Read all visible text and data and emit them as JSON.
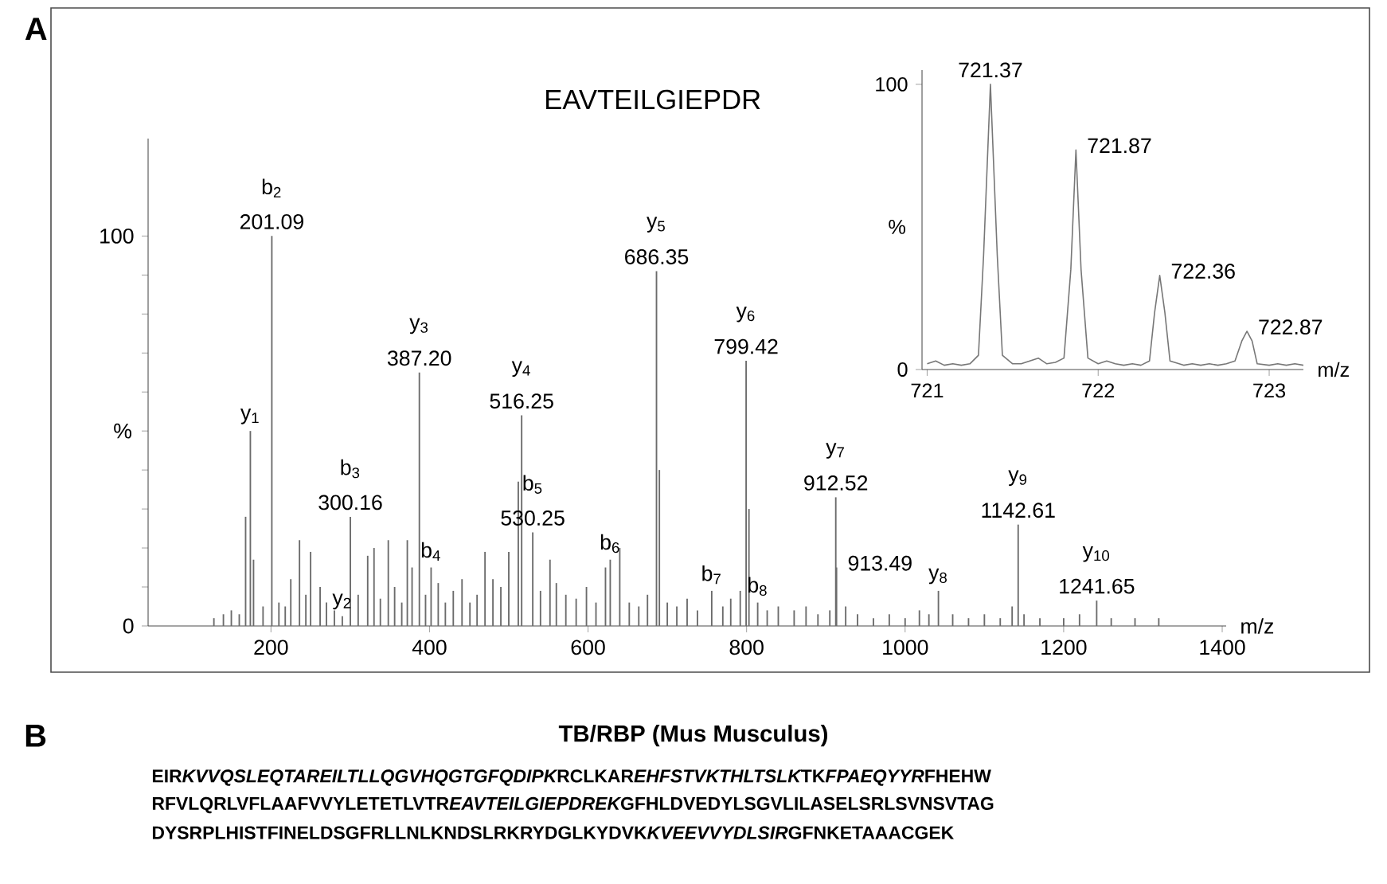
{
  "chart_data": [
    {
      "type": "bar",
      "xlabel": "m/z",
      "ylabel": "%",
      "color": "#6b6b6b",
      "x": [
        128,
        140,
        150,
        160,
        168,
        174,
        178,
        190,
        201.09,
        210,
        218,
        225,
        236,
        244,
        250,
        262,
        270,
        280,
        290,
        300.16,
        310,
        322,
        330,
        338,
        348,
        356,
        365,
        372,
        378,
        387.2,
        395,
        402,
        411,
        420,
        430,
        441,
        451,
        460,
        470,
        480,
        490,
        500,
        512,
        516.25,
        530.25,
        540,
        552,
        560,
        572,
        585,
        598,
        610,
        622,
        628,
        640,
        652,
        664,
        675,
        686.35,
        690,
        700,
        712,
        725,
        738,
        756,
        770,
        780,
        792,
        799.42,
        803,
        814,
        826,
        840,
        860,
        875,
        890,
        905,
        912.52,
        913.49,
        925,
        940,
        960,
        980,
        1000,
        1018,
        1030,
        1042,
        1060,
        1080,
        1100,
        1120,
        1135,
        1142.61,
        1150,
        1170,
        1200,
        1220,
        1241.65,
        1260,
        1290,
        1320
      ],
      "values": [
        2,
        3,
        4,
        3,
        28,
        50,
        17,
        5,
        100,
        6,
        5,
        12,
        22,
        8,
        19,
        10,
        6,
        4,
        2.5,
        28,
        8,
        18,
        20,
        7,
        22,
        10,
        6,
        22,
        15,
        65,
        8,
        15,
        11,
        6,
        9,
        12,
        6,
        8,
        19,
        12,
        10,
        19,
        37,
        54,
        24,
        9,
        17,
        11,
        8,
        7,
        10,
        6,
        15,
        17,
        20,
        6,
        5,
        8,
        91,
        40,
        6,
        5,
        7,
        4,
        9,
        5,
        7,
        9,
        68,
        30,
        6,
        4,
        5,
        4,
        5,
        3,
        4,
        33,
        15,
        5,
        3,
        2,
        3,
        2,
        4,
        3,
        9,
        3,
        2,
        3,
        2,
        5,
        26,
        3,
        2,
        2,
        3,
        6.5,
        2,
        2,
        2
      ],
      "xlim": [
        45,
        1405
      ],
      "ylim": [
        0,
        125
      ],
      "xticks": [
        200,
        400,
        600,
        800,
        1000,
        1200,
        1400
      ],
      "yticks": [
        0,
        {
          "value": 10,
          "label": null
        },
        {
          "value": 20,
          "label": null
        },
        {
          "value": 30,
          "label": null
        },
        {
          "value": 40,
          "label": null
        },
        {
          "value": 50,
          "label": null
        },
        {
          "value": 60,
          "label": null
        },
        {
          "value": 70,
          "label": null
        },
        {
          "value": 80,
          "label": null
        },
        {
          "value": 90,
          "label": null
        },
        100
      ],
      "annotations": [
        "A",
        "EAVTEILGIEPDR",
        {
          "text": "y$_{1}$",
          "x": 174,
          "y": 50
        },
        {
          "text": "b$_{2}$",
          "x": 201.09,
          "y": 100
        },
        {
          "text": "201.09",
          "x": 201.09,
          "y": 100
        },
        {
          "text": "y$_{2}$",
          "x": 290,
          "y": 2.5
        },
        {
          "text": "b$_{3}$",
          "x": 300.16,
          "y": 28
        },
        {
          "text": "300.16",
          "x": 300.16,
          "y": 28
        },
        {
          "text": "y$_{3}$",
          "x": 387.2,
          "y": 65
        },
        {
          "text": "387.20",
          "x": 387.2,
          "y": 65
        },
        {
          "text": "b$_{4}$",
          "x": 402,
          "y": 15
        },
        {
          "text": "y$_{4}$",
          "x": 516.25,
          "y": 54
        },
        {
          "text": "516.25",
          "x": 516.25,
          "y": 54
        },
        {
          "text": "b$_{5}$",
          "x": 530.25,
          "y": 24
        },
        {
          "text": "530.25",
          "x": 530.25,
          "y": 24
        },
        {
          "text": "b$_{6}$",
          "x": 628,
          "y": 17
        },
        {
          "text": "y$_{5}$",
          "x": 686.35,
          "y": 91
        },
        {
          "text": "686.35",
          "x": 686.35,
          "y": 91
        },
        {
          "text": "b$_{7}$",
          "x": 756,
          "y": 9
        },
        {
          "text": "y$_{6}$",
          "x": 799.42,
          "y": 68
        },
        {
          "text": "799.42",
          "x": 799.42,
          "y": 68
        },
        {
          "text": "b$_{8}$",
          "x": 814,
          "y": 6
        },
        {
          "text": "y$_{7}$",
          "x": 912.52,
          "y": 33
        },
        {
          "text": "912.52",
          "x": 912.52,
          "y": 33
        },
        {
          "text": "913.49",
          "x": 913.49,
          "y": 15
        },
        {
          "text": "y$_{8}$",
          "x": 1042,
          "y": 9
        },
        {
          "text": "y$_{9}$",
          "x": 1142.61,
          "y": 26
        },
        {
          "text": "1142.61",
          "x": 1142.61,
          "y": 26
        },
        {
          "text": "y$_{10}$",
          "x": 1241.65,
          "y": 6.5
        },
        {
          "text": "1241.65",
          "x": 1241.65,
          "y": 6.5
        }
      ]
    },
    {
      "type": "line",
      "xlabel": "m/z",
      "ylabel": "%",
      "color": "#777777",
      "x": [
        721.0,
        721.05,
        721.1,
        721.15,
        721.2,
        721.25,
        721.3,
        721.33,
        721.37,
        721.41,
        721.44,
        721.5,
        721.55,
        721.6,
        721.65,
        721.7,
        721.75,
        721.8,
        721.84,
        721.87,
        721.9,
        721.94,
        722.0,
        722.05,
        722.1,
        722.15,
        722.2,
        722.25,
        722.3,
        722.33,
        722.36,
        722.39,
        722.42,
        722.5,
        722.55,
        722.6,
        722.65,
        722.7,
        722.75,
        722.8,
        722.84,
        722.87,
        722.9,
        722.93,
        723.0,
        723.05,
        723.1,
        723.15,
        723.2
      ],
      "values": [
        2,
        3,
        1.5,
        2,
        1.5,
        2,
        5,
        40,
        100,
        40,
        5,
        2,
        2,
        3,
        4,
        2,
        2.5,
        4,
        35,
        77,
        35,
        4,
        2,
        3,
        2,
        1.5,
        2,
        1.5,
        3,
        20,
        33,
        20,
        3,
        1.5,
        2,
        1.5,
        2,
        1.5,
        2,
        3,
        10,
        13.4,
        10,
        2,
        1.5,
        2,
        1.5,
        2,
        1.5
      ],
      "xlim": [
        720.97,
        723.2
      ],
      "ylim": [
        0,
        105
      ],
      "xticks": [
        721,
        722,
        723
      ],
      "yticks": [
        0,
        100
      ],
      "annotations": [
        {
          "text": "721.37",
          "x": 721.37,
          "y": 100
        },
        {
          "text": "721.87",
          "x": 721.87,
          "y": 77
        },
        {
          "text": "722.36",
          "x": 722.36,
          "y": 33
        },
        {
          "text": "722.87",
          "x": 722.87,
          "y": 13.4
        }
      ]
    },
    {
      "type": "other",
      "title": "TB/RBP (Mus Musculus)",
      "annotations": [
        "B",
        "EIR",
        "KVVQSLEQTAREILTLLQGVHQGTGFQDIPK",
        "RCLKAR",
        "EHFSTVKTHLTSLK",
        "TK",
        "FPAEQYYR",
        "FHEHW",
        "RFVLQRLVFLAAFVVYLETETLVTR",
        "EAVTEILGIEPDREK",
        "GFHLDVEDYLSGVLILASELSRLSVNSVTAG",
        "DYSRPLHISTFINELDSGFRLLNLKNDSLRKRYDGLKYDVK",
        "KVEEVVYDLSIR",
        "GFNKETAAACGEK"
      ]
    }
  ]
}
